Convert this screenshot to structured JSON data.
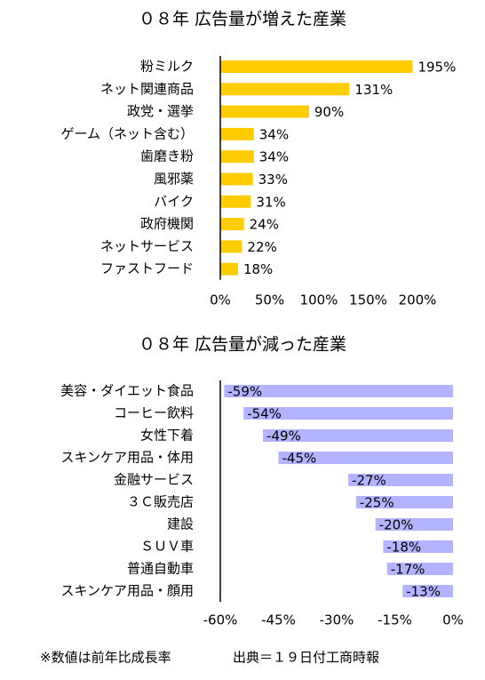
{
  "chart_data": [
    {
      "type": "barh",
      "title": "０８年 広告量が増えた産業",
      "categories": [
        "粉ミルク",
        "ネット関連商品",
        "政党・選挙",
        "ゲーム（ネット含む）",
        "歯磨き粉",
        "風邪薬",
        "バイク",
        "政府機関",
        "ネットサービス",
        "ファストフード"
      ],
      "values": [
        195,
        131,
        90,
        34,
        34,
        33,
        31,
        24,
        22,
        18
      ],
      "value_labels": [
        "195%",
        "131%",
        "90%",
        "34%",
        "34%",
        "33%",
        "31%",
        "24%",
        "22%",
        "18%"
      ],
      "color": "#ffcc00",
      "xlim": [
        0,
        200
      ],
      "xticks": [
        {
          "value": 0,
          "label": "0%"
        },
        {
          "value": 50,
          "label": "50%"
        },
        {
          "value": 100,
          "label": "100%"
        },
        {
          "value": 150,
          "label": "150%"
        },
        {
          "value": 200,
          "label": "200%"
        }
      ]
    },
    {
      "type": "barh",
      "title": "０８年 広告量が減った産業",
      "categories": [
        "美容・ダイエット食品",
        "コーヒー飲料",
        "女性下着",
        "スキンケア用品・体用",
        "金融サービス",
        "３Ｃ販売店",
        "建設",
        "ＳＵＶ車",
        "普通自動車",
        "スキンケア用品・顔用"
      ],
      "values": [
        -59,
        -54,
        -49,
        -45,
        -27,
        -25,
        -20,
        -18,
        -17,
        -13
      ],
      "value_labels": [
        "-59%",
        "-54%",
        "-49%",
        "-45%",
        "-27%",
        "-25%",
        "-20%",
        "-18%",
        "-17%",
        "-13%"
      ],
      "color": "#b3b3ff",
      "xlim": [
        -60,
        0
      ],
      "xticks": [
        {
          "value": -60,
          "label": "-60%"
        },
        {
          "value": -45,
          "label": "-45%"
        },
        {
          "value": -30,
          "label": "-30%"
        },
        {
          "value": -15,
          "label": "-15%"
        },
        {
          "value": 0,
          "label": "0%"
        }
      ]
    }
  ],
  "footnote": "※数値は前年比成長率",
  "source": "出典＝１９日付工商時報"
}
